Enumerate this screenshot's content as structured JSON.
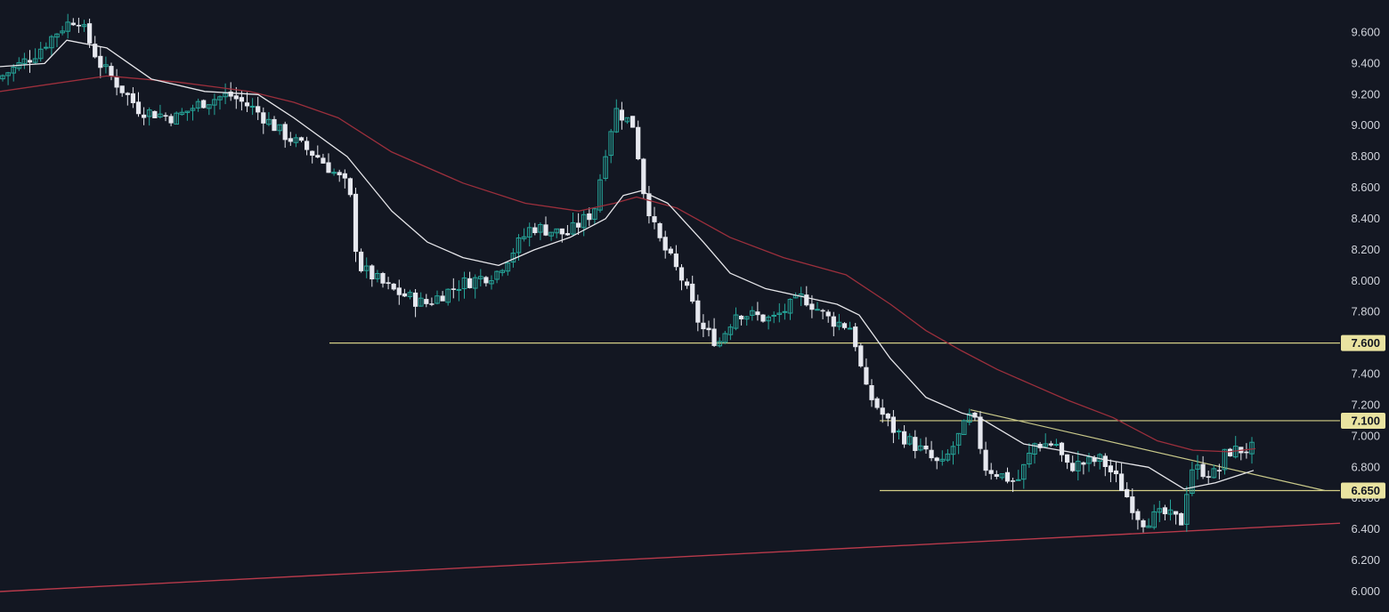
{
  "colors": {
    "background": "#131722",
    "bull": "#26a69a",
    "bear": "#e6e8ef",
    "ma_fast": "#e6e6ea",
    "ma_slow": "#9c2f3c",
    "level": "#d4cf86",
    "trendline": "#c9c98a",
    "support": "#b83a4b",
    "tick_text": "#d1d4dc"
  },
  "chart_data": {
    "type": "candlestick",
    "x_range": [
      0,
      1505
    ],
    "ylim": [
      6.0,
      9.7
    ],
    "y_ticks": [
      "6.000",
      "6.200",
      "6.400",
      "6.600",
      "6.800",
      "7.000",
      "7.200",
      "7.400",
      "7.600",
      "7.800",
      "8.000",
      "8.200",
      "8.400",
      "8.600",
      "8.800",
      "9.000",
      "9.200",
      "9.400",
      "9.600"
    ],
    "anchors": [
      [
        0,
        9.3
      ],
      [
        40,
        9.45
      ],
      [
        70,
        9.62
      ],
      [
        90,
        9.7
      ],
      [
        115,
        9.4
      ],
      [
        160,
        9.1
      ],
      [
        200,
        9.05
      ],
      [
        230,
        9.15
      ],
      [
        260,
        9.2
      ],
      [
        290,
        9.1
      ],
      [
        320,
        8.95
      ],
      [
        360,
        8.8
      ],
      [
        395,
        8.6
      ],
      [
        405,
        8.1
      ],
      [
        440,
        7.95
      ],
      [
        480,
        7.85
      ],
      [
        520,
        7.98
      ],
      [
        560,
        8.05
      ],
      [
        600,
        8.35
      ],
      [
        640,
        8.3
      ],
      [
        670,
        8.45
      ],
      [
        685,
        8.9
      ],
      [
        695,
        9.1
      ],
      [
        715,
        9.0
      ],
      [
        725,
        8.6
      ],
      [
        740,
        8.3
      ],
      [
        770,
        8.0
      ],
      [
        790,
        7.7
      ],
      [
        810,
        7.6
      ],
      [
        830,
        7.8
      ],
      [
        870,
        7.75
      ],
      [
        905,
        7.9
      ],
      [
        935,
        7.75
      ],
      [
        960,
        7.7
      ],
      [
        975,
        7.3
      ],
      [
        1005,
        7.05
      ],
      [
        1040,
        6.9
      ],
      [
        1060,
        6.8
      ],
      [
        1095,
        7.15
      ],
      [
        1110,
        6.8
      ],
      [
        1145,
        6.7
      ],
      [
        1165,
        6.95
      ],
      [
        1190,
        6.95
      ],
      [
        1200,
        6.8
      ],
      [
        1240,
        6.85
      ],
      [
        1260,
        6.7
      ],
      [
        1285,
        6.45
      ],
      [
        1310,
        6.5
      ],
      [
        1330,
        6.45
      ],
      [
        1340,
        6.8
      ],
      [
        1370,
        6.75
      ],
      [
        1380,
        6.9
      ],
      [
        1410,
        6.92
      ]
    ],
    "ma_fast": [
      [
        0,
        9.38
      ],
      [
        50,
        9.4
      ],
      [
        75,
        9.55
      ],
      [
        120,
        9.5
      ],
      [
        170,
        9.3
      ],
      [
        230,
        9.22
      ],
      [
        290,
        9.2
      ],
      [
        330,
        9.05
      ],
      [
        390,
        8.8
      ],
      [
        440,
        8.45
      ],
      [
        480,
        8.25
      ],
      [
        520,
        8.15
      ],
      [
        560,
        8.1
      ],
      [
        600,
        8.2
      ],
      [
        640,
        8.28
      ],
      [
        680,
        8.4
      ],
      [
        700,
        8.55
      ],
      [
        720,
        8.58
      ],
      [
        750,
        8.5
      ],
      [
        790,
        8.25
      ],
      [
        820,
        8.05
      ],
      [
        860,
        7.95
      ],
      [
        900,
        7.9
      ],
      [
        940,
        7.85
      ],
      [
        965,
        7.78
      ],
      [
        1000,
        7.5
      ],
      [
        1040,
        7.25
      ],
      [
        1080,
        7.15
      ],
      [
        1100,
        7.12
      ],
      [
        1150,
        6.95
      ],
      [
        1200,
        6.9
      ],
      [
        1240,
        6.85
      ],
      [
        1290,
        6.8
      ],
      [
        1330,
        6.66
      ],
      [
        1365,
        6.7
      ],
      [
        1408,
        6.78
      ]
    ],
    "ma_slow": [
      [
        0,
        9.22
      ],
      [
        60,
        9.27
      ],
      [
        120,
        9.32
      ],
      [
        200,
        9.28
      ],
      [
        280,
        9.22
      ],
      [
        330,
        9.15
      ],
      [
        380,
        9.05
      ],
      [
        440,
        8.83
      ],
      [
        520,
        8.63
      ],
      [
        590,
        8.5
      ],
      [
        650,
        8.45
      ],
      [
        690,
        8.5
      ],
      [
        715,
        8.54
      ],
      [
        760,
        8.47
      ],
      [
        820,
        8.28
      ],
      [
        880,
        8.15
      ],
      [
        950,
        8.04
      ],
      [
        1000,
        7.85
      ],
      [
        1040,
        7.68
      ],
      [
        1080,
        7.55
      ],
      [
        1120,
        7.43
      ],
      [
        1160,
        7.33
      ],
      [
        1200,
        7.23
      ],
      [
        1250,
        7.12
      ],
      [
        1300,
        6.97
      ],
      [
        1340,
        6.91
      ],
      [
        1380,
        6.9
      ],
      [
        1410,
        6.92
      ]
    ],
    "levels": [
      {
        "value": 7.6,
        "label": "7.600",
        "x_start": 370
      },
      {
        "value": 7.1,
        "label": "7.100",
        "x_start": 988
      },
      {
        "value": 6.65,
        "label": "6.650",
        "x_start": 988
      }
    ],
    "trendline": {
      "points": [
        [
          1090,
          7.17
        ],
        [
          1488,
          6.65
        ]
      ]
    },
    "support_line": {
      "points": [
        [
          0,
          6.0
        ],
        [
          1505,
          6.44
        ]
      ]
    }
  }
}
